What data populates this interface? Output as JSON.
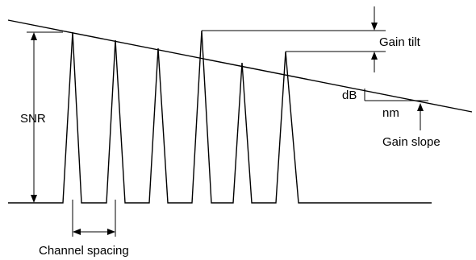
{
  "labels": {
    "snr": "SNR",
    "gain_tilt": "Gain tilt",
    "db": "dB",
    "nm": "nm",
    "gain_slope": "Gain slope",
    "channel_spacing": "Channel spacing"
  },
  "colors": {
    "line": "#000000",
    "background": "#ffffff"
  }
}
